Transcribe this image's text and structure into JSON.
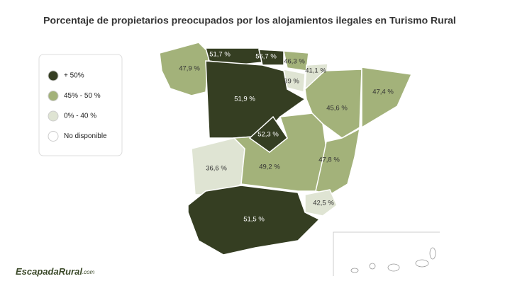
{
  "title": "Porcentaje de propietarios preocupados por los alojamientos ilegales en Turismo Rural",
  "legend": [
    {
      "label": "+ 50%",
      "color": "#353e22"
    },
    {
      "label": "45% - 50 %",
      "color": "#a3b27a"
    },
    {
      "label": "0% - 40 %",
      "color": "#dfe4d3"
    },
    {
      "label": "No disponible",
      "color": "#ffffff"
    }
  ],
  "regions": [
    {
      "label": "47,9 %",
      "color": "#a3b27a"
    },
    {
      "label": "51,7 %",
      "color": "#353e22"
    },
    {
      "label": "56,7 %",
      "color": "#353e22"
    },
    {
      "label": "46,3 %",
      "color": "#a3b27a"
    },
    {
      "label": "41,1 %",
      "color": "#dfe4d3"
    },
    {
      "label": "39 %",
      "color": "#dfe4d3"
    },
    {
      "label": "51,9 %",
      "color": "#353e22"
    },
    {
      "label": "45,6 %",
      "color": "#a3b27a"
    },
    {
      "label": "47,4 %",
      "color": "#a3b27a"
    },
    {
      "label": "52,3 %",
      "color": "#353e22"
    },
    {
      "label": "36,6 %",
      "color": "#dfe4d3"
    },
    {
      "label": "49,2 %",
      "color": "#a3b27a"
    },
    {
      "label": "47,8 %",
      "color": "#a3b27a"
    },
    {
      "label": "42,5 %",
      "color": "#dfe4d3"
    },
    {
      "label": "51,5 %",
      "color": "#353e22"
    }
  ],
  "logo": {
    "name": "EscapadaRural",
    "suffix": ".com"
  }
}
